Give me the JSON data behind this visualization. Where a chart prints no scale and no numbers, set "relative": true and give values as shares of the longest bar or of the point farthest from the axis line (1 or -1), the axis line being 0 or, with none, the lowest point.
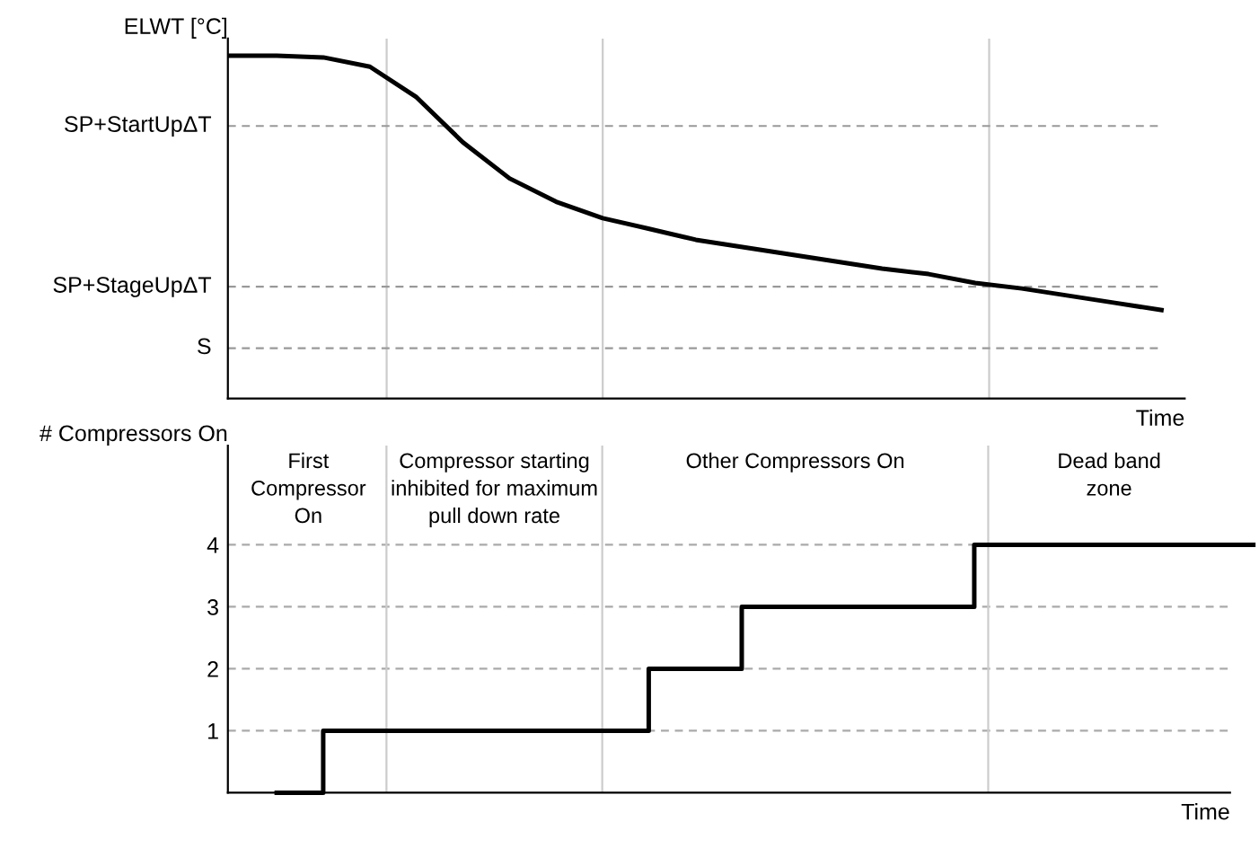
{
  "chart_data": [
    {
      "type": "line",
      "relative": true,
      "ylabel": "ELWT [°C]",
      "xlabel": "Time",
      "color": "#000000",
      "categories": [
        null,
        null,
        null,
        null,
        null,
        null,
        null,
        null,
        null,
        null,
        null,
        null,
        null,
        null,
        null,
        null,
        null,
        null,
        null,
        null,
        null
      ],
      "values": [
        1.0,
        1.0,
        0.995,
        0.968,
        0.879,
        0.747,
        0.642,
        0.574,
        0.526,
        0.495,
        0.463,
        0.442,
        0.421,
        0.4,
        0.379,
        0.363,
        0.337,
        0.321,
        0.3,
        0.279,
        0.258
      ],
      "ref_lines": [
        {
          "axis": "y",
          "value": 0.795,
          "label": "SP+StartUpΔT",
          "color": "#999999",
          "line_style": "dashed"
        },
        {
          "axis": "y",
          "value": 0.326,
          "label": "SP+StageUpΔT",
          "color": "#999999",
          "line_style": "dashed"
        },
        {
          "axis": "y",
          "value": 0.147,
          "label": "S",
          "color": "#999999",
          "line_style": "dashed"
        }
      ]
    },
    {
      "type": "step",
      "ylabel": "# Compressors On",
      "xlabel": "Time",
      "color": "#000000",
      "categories": [
        null,
        null,
        null,
        null,
        null,
        null,
        null,
        null,
        null,
        null,
        null,
        null,
        null,
        null,
        null,
        null,
        null,
        null,
        null,
        null,
        null
      ],
      "values": [
        null,
        0,
        1,
        1,
        1,
        1,
        1,
        1,
        1,
        2,
        2,
        3,
        3,
        3,
        3,
        3,
        4,
        4,
        4,
        4,
        4
      ],
      "ylim": [
        0,
        5.6
      ],
      "yticks": [
        1,
        2,
        3,
        4
      ],
      "grid": "y",
      "annotations": [
        "First\nCompressor\nOn",
        "Compressor starting\ninhibited for maximum\npull down rate",
        "Other Compressors On",
        "Dead band\nzone"
      ]
    }
  ]
}
